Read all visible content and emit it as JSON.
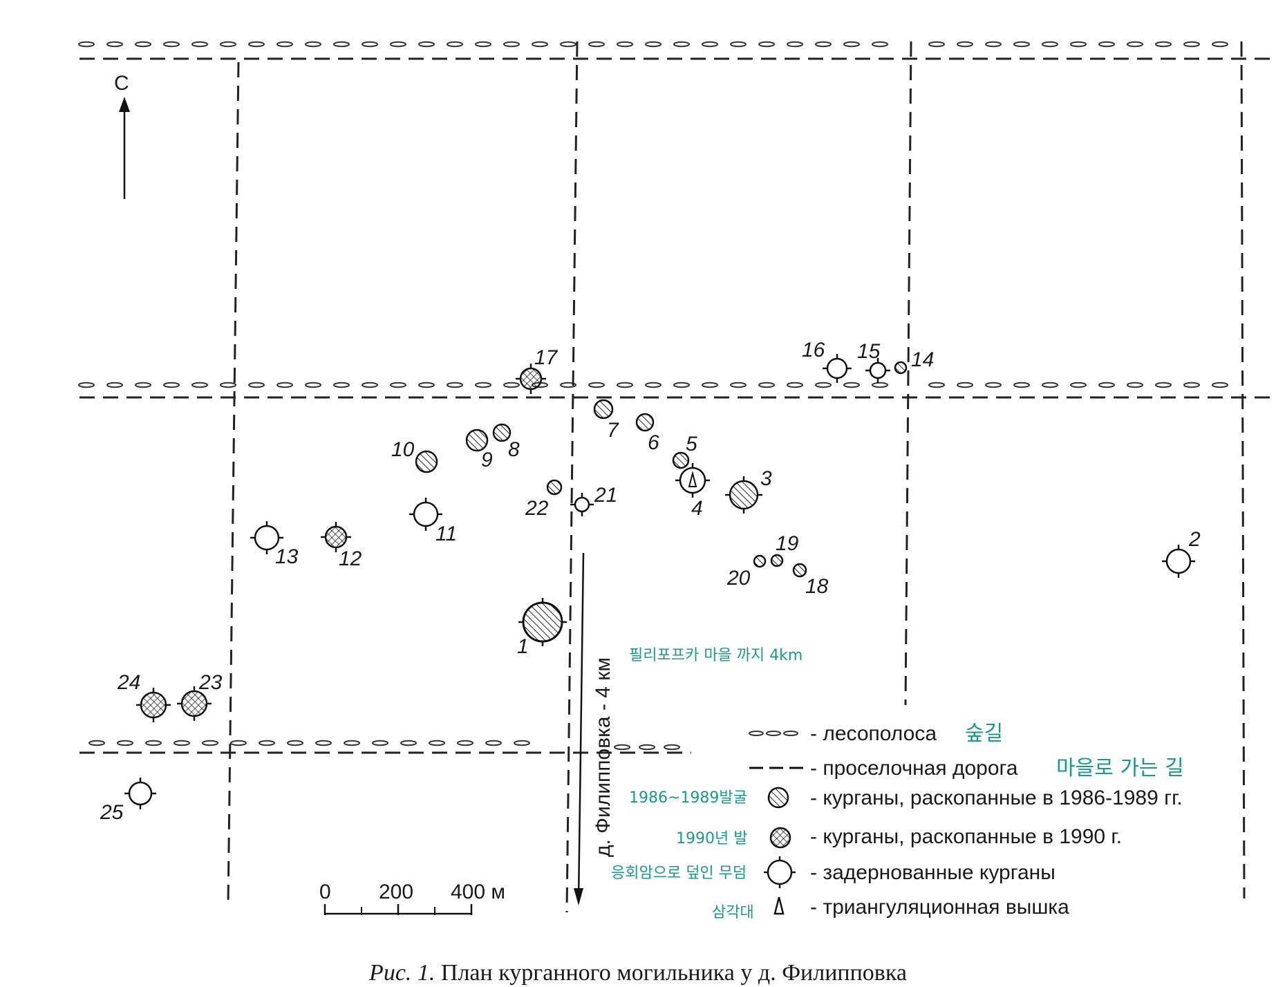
{
  "north_label": "С",
  "road_label": "д. Филипповка - 4 км",
  "road_label_korean": "필리포프카 마을 까지 4km",
  "scale": {
    "ticks": [
      "0",
      "200",
      "400 м"
    ]
  },
  "kurgans": [
    {
      "num": "1",
      "type": "excavated_1986_1989",
      "size": "large"
    },
    {
      "num": "2",
      "type": "turfed"
    },
    {
      "num": "3",
      "type": "excavated_1986_1989"
    },
    {
      "num": "4",
      "type": "turfed_with_triangulation_tower"
    },
    {
      "num": "5",
      "type": "excavated_1986_1989"
    },
    {
      "num": "6",
      "type": "excavated_1986_1989"
    },
    {
      "num": "7",
      "type": "excavated_1986_1989"
    },
    {
      "num": "8",
      "type": "excavated_1986_1989"
    },
    {
      "num": "9",
      "type": "excavated_1986_1989"
    },
    {
      "num": "10",
      "type": "excavated_1986_1989"
    },
    {
      "num": "11",
      "type": "turfed"
    },
    {
      "num": "12",
      "type": "excavated_1990"
    },
    {
      "num": "13",
      "type": "turfed"
    },
    {
      "num": "14",
      "type": "excavated_1986_1989"
    },
    {
      "num": "15",
      "type": "turfed"
    },
    {
      "num": "16",
      "type": "turfed"
    },
    {
      "num": "17",
      "type": "excavated_1990"
    },
    {
      "num": "18",
      "type": "excavated_1986_1989"
    },
    {
      "num": "19",
      "type": "excavated_1986_1989"
    },
    {
      "num": "20",
      "type": "excavated_1986_1989"
    },
    {
      "num": "21",
      "type": "turfed"
    },
    {
      "num": "22",
      "type": "excavated_1986_1989"
    },
    {
      "num": "23",
      "type": "excavated_1990"
    },
    {
      "num": "24",
      "type": "excavated_1990"
    },
    {
      "num": "25",
      "type": "turfed"
    }
  ],
  "legend": {
    "forest_strip": {
      "text": "- лесополоса",
      "korean": "숲길"
    },
    "dirt_road": {
      "text": "- проселочная дорога",
      "korean": "마을로 가는 길"
    },
    "excavated_1986_1989": {
      "text": "- курганы, раскопанные в 1986-1989 гг.",
      "korean": "1986~1989발굴"
    },
    "excavated_1990": {
      "text": "- курганы, раскопанные в 1990 г.",
      "korean": "1990년 발"
    },
    "turfed": {
      "text": "- задернованные курганы",
      "korean": "응회암으로 덮인 무덤"
    },
    "triangulation_tower": {
      "text": "- триангуляционная вышка",
      "korean": "삼각대"
    }
  },
  "caption": {
    "prefix": "Рис. 1.",
    "text": " План курганного могильника у д. Филипповка"
  }
}
